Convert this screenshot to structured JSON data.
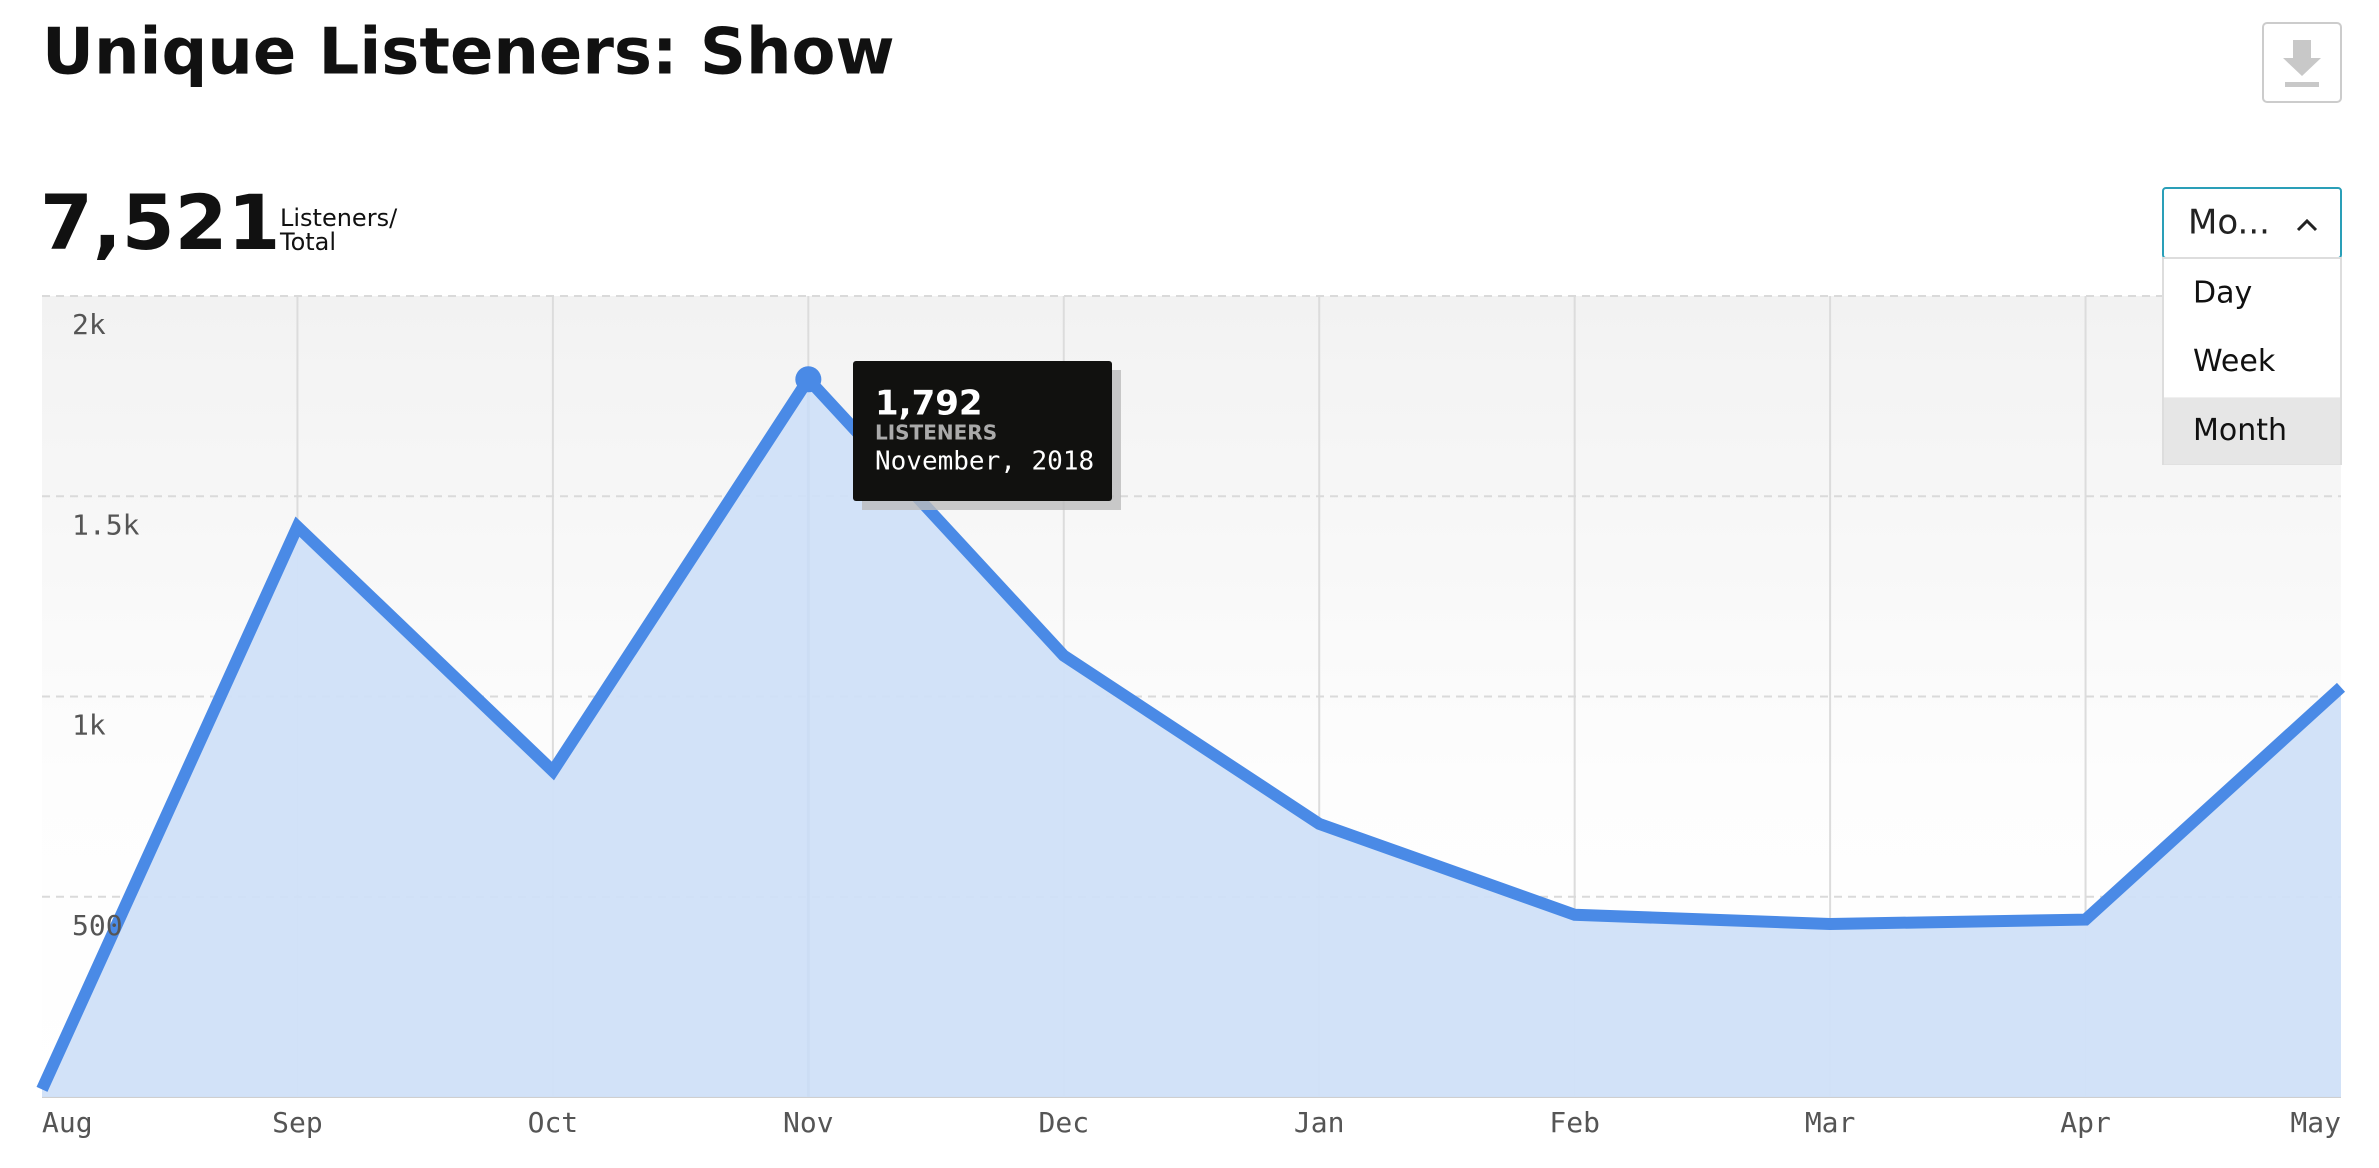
{
  "header": {
    "title": "Unique Listeners: Show",
    "total": "7,521",
    "total_label": [
      "Listeners/",
      "Total"
    ]
  },
  "dropdown": {
    "selected": "Mo...",
    "options": [
      "Day",
      "Week",
      "Month"
    ],
    "highlighted": 2
  },
  "tooltip": {
    "value": "1,792",
    "label": "LISTENERS",
    "date": "November, 2018",
    "index": 3
  },
  "chart_data": {
    "type": "line",
    "categories": [
      "Aug",
      "Sep",
      "Oct",
      "Nov",
      "Dec",
      "Jan",
      "Feb",
      "Mar",
      "Apr",
      "May"
    ],
    "values": [
      19,
      1424,
      814,
      1792,
      1102,
      682,
      455,
      432,
      443,
      1023
    ],
    "color": "#4a8ae6",
    "fill": "#d0e0f8",
    "ylim": [
      0,
      2000
    ],
    "yticks": [
      500,
      {
        "value": 1000,
        "label": "1k"
      },
      {
        "value": 1500,
        "label": "1.5k"
      },
      {
        "value": 2000,
        "label": "2k"
      }
    ],
    "grid": true
  }
}
